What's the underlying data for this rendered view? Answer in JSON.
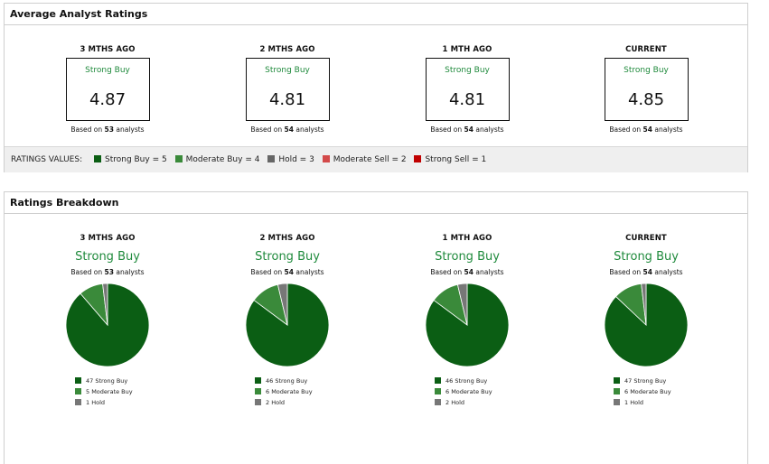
{
  "average_panel": {
    "title": "Average Analyst Ratings",
    "columns": [
      {
        "label": "3 MTHS AGO",
        "rating": "Strong Buy",
        "value": "4.87",
        "based_prefix": "Based on",
        "analysts": "53",
        "based_suffix": "analysts"
      },
      {
        "label": "2 MTHS AGO",
        "rating": "Strong Buy",
        "value": "4.81",
        "based_prefix": "Based on",
        "analysts": "54",
        "based_suffix": "analysts"
      },
      {
        "label": "1 MTH AGO",
        "rating": "Strong Buy",
        "value": "4.81",
        "based_prefix": "Based on",
        "analysts": "54",
        "based_suffix": "analysts"
      },
      {
        "label": "CURRENT",
        "rating": "Strong Buy",
        "value": "4.85",
        "based_prefix": "Based on",
        "analysts": "54",
        "based_suffix": "analysts"
      }
    ],
    "ratings_values": {
      "title": "RATINGS VALUES:",
      "items": [
        {
          "label": "Strong Buy = 5",
          "color": "#0b5e14"
        },
        {
          "label": "Moderate Buy = 4",
          "color": "#3a8a3a"
        },
        {
          "label": "Hold = 3",
          "color": "#666666"
        },
        {
          "label": "Moderate Sell = 2",
          "color": "#d34a4a"
        },
        {
          "label": "Strong Sell = 1",
          "color": "#c00000"
        }
      ]
    }
  },
  "breakdown_panel": {
    "title": "Ratings Breakdown",
    "columns": [
      {
        "label": "3 MTHS AGO",
        "rating": "Strong Buy",
        "based_prefix": "Based on",
        "analysts": "53",
        "based_suffix": "analysts"
      },
      {
        "label": "2 MTHS AGO",
        "rating": "Strong Buy",
        "based_prefix": "Based on",
        "analysts": "54",
        "based_suffix": "analysts"
      },
      {
        "label": "1 MTH AGO",
        "rating": "Strong Buy",
        "based_prefix": "Based on",
        "analysts": "54",
        "based_suffix": "analysts"
      },
      {
        "label": "CURRENT",
        "rating": "Strong Buy",
        "based_prefix": "Based on",
        "analysts": "54",
        "based_suffix": "analysts"
      }
    ]
  },
  "chart_data": [
    {
      "type": "pie",
      "title": "3 MTHS AGO",
      "categories": [
        "Strong Buy",
        "Moderate Buy",
        "Hold"
      ],
      "values": [
        47,
        5,
        1
      ],
      "legend": [
        "47 Strong Buy",
        "5 Moderate Buy",
        "1 Hold"
      ],
      "colors": [
        "#0b5e14",
        "#3a8a3a",
        "#777777"
      ]
    },
    {
      "type": "pie",
      "title": "2 MTHS AGO",
      "categories": [
        "Strong Buy",
        "Moderate Buy",
        "Hold"
      ],
      "values": [
        46,
        6,
        2
      ],
      "legend": [
        "46 Strong Buy",
        "6 Moderate Buy",
        "2 Hold"
      ],
      "colors": [
        "#0b5e14",
        "#3a8a3a",
        "#777777"
      ]
    },
    {
      "type": "pie",
      "title": "1 MTH AGO",
      "categories": [
        "Strong Buy",
        "Moderate Buy",
        "Hold"
      ],
      "values": [
        46,
        6,
        2
      ],
      "legend": [
        "46 Strong Buy",
        "6 Moderate Buy",
        "2 Hold"
      ],
      "colors": [
        "#0b5e14",
        "#3a8a3a",
        "#777777"
      ]
    },
    {
      "type": "pie",
      "title": "CURRENT",
      "categories": [
        "Strong Buy",
        "Moderate Buy",
        "Hold"
      ],
      "values": [
        47,
        6,
        1
      ],
      "legend": [
        "47 Strong Buy",
        "6 Moderate Buy",
        "1 Hold"
      ],
      "colors": [
        "#0b5e14",
        "#3a8a3a",
        "#777777"
      ]
    }
  ]
}
